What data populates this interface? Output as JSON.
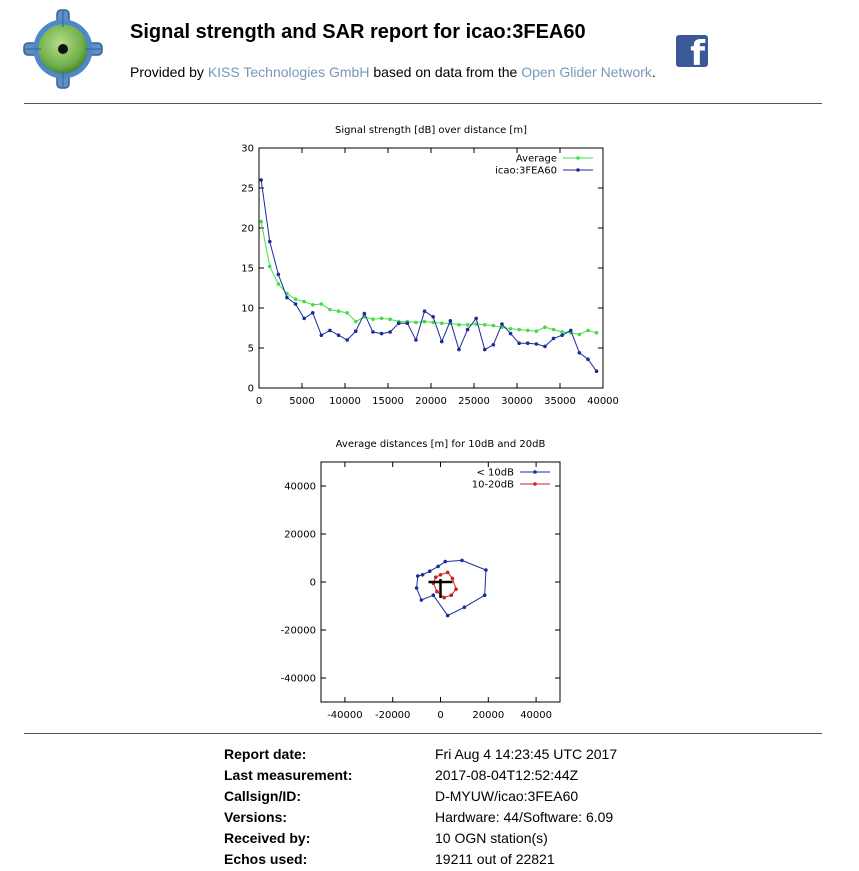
{
  "header": {
    "title": "Signal strength and SAR report for icao:3FEA60",
    "provided_prefix": "Provided by ",
    "provider_link": "KISS Technologies GmbH",
    "provided_middle": " based on data from the ",
    "network_link": "Open Glider Network",
    "provided_suffix": ".",
    "logo_icon": "crosshair-target-icon",
    "share_icon": "facebook-icon",
    "link_color": "#7a98b8"
  },
  "chart_data": [
    {
      "type": "line",
      "title": "Signal strength [dB] over distance [m]",
      "xlabel": "",
      "ylabel": "",
      "xlim": [
        0,
        40000
      ],
      "ylim": [
        0,
        30
      ],
      "xticks": [
        "0",
        "5000",
        "10000",
        "15000",
        "20000",
        "25000",
        "30000",
        "35000",
        "40000"
      ],
      "yticks": [
        "0",
        "5",
        "10",
        "15",
        "20",
        "25",
        "30"
      ],
      "legend_position": "top-right",
      "series": [
        {
          "name": "Average",
          "color": "#44dd44",
          "x": [
            250,
            1250,
            2250,
            3250,
            4250,
            5250,
            6250,
            7250,
            8250,
            9250,
            10250,
            11250,
            12250,
            13250,
            14250,
            15250,
            16250,
            17250,
            18250,
            19250,
            20250,
            21250,
            22250,
            23250,
            24250,
            25250,
            26250,
            27250,
            28250,
            29250,
            30250,
            31250,
            32250,
            33250,
            34250,
            35250,
            36250,
            37250,
            38250,
            39250
          ],
          "values": [
            20.8,
            15.2,
            13.0,
            11.8,
            11.1,
            10.8,
            10.4,
            10.5,
            9.8,
            9.6,
            9.4,
            8.3,
            8.9,
            8.6,
            8.7,
            8.6,
            8.3,
            8.3,
            8.2,
            8.3,
            8.2,
            8.1,
            8.1,
            7.9,
            7.9,
            8.0,
            7.9,
            7.8,
            7.6,
            7.4,
            7.3,
            7.2,
            7.1,
            7.6,
            7.3,
            7.0,
            6.9,
            6.7,
            7.2,
            6.9
          ]
        },
        {
          "name": "icao:3FEA60",
          "color": "#1a2d9c",
          "x": [
            250,
            1250,
            2250,
            3250,
            4250,
            5250,
            6250,
            7250,
            8250,
            9250,
            10250,
            11250,
            12250,
            13250,
            14250,
            15250,
            16250,
            17250,
            18250,
            19250,
            20250,
            21250,
            22250,
            23250,
            24250,
            25250,
            26250,
            27250,
            28250,
            29250,
            30250,
            31250,
            32250,
            33250,
            34250,
            35250,
            36250,
            37250,
            38250,
            39250
          ],
          "values": [
            26.0,
            18.3,
            14.2,
            11.3,
            10.5,
            8.7,
            9.4,
            6.6,
            7.2,
            6.6,
            6.0,
            7.1,
            9.3,
            7.0,
            6.8,
            7.0,
            8.1,
            8.1,
            6.0,
            9.6,
            8.9,
            5.8,
            8.4,
            4.8,
            7.3,
            8.7,
            4.8,
            5.4,
            8.0,
            6.8,
            5.6,
            5.6,
            5.5,
            5.2,
            6.2,
            6.6,
            7.2,
            4.4,
            3.6,
            2.1
          ]
        }
      ]
    },
    {
      "type": "scatter",
      "title": "Average distances [m] for 10dB and 20dB",
      "xlabel": "",
      "ylabel": "",
      "xlim": [
        -50000,
        50000
      ],
      "ylim": [
        -50000,
        50000
      ],
      "xticks": [
        "-40000",
        "-20000",
        "0",
        "20000",
        "40000"
      ],
      "yticks": [
        "40000",
        "20000",
        "0",
        "-20000",
        "-40000"
      ],
      "legend_position": "top-right",
      "marker": "cross-at-origin",
      "series": [
        {
          "name": "< 10dB",
          "color": "#1a2d9c",
          "x": [
            2000,
            9000,
            19000,
            18500,
            10000,
            3000,
            -3000,
            -8000,
            -10000,
            -9500,
            -7500,
            -4500,
            -1000
          ],
          "y": [
            8500,
            9000,
            5000,
            -5500,
            -10500,
            -14000,
            -5500,
            -7500,
            -2500,
            2500,
            3000,
            4500,
            6500
          ]
        },
        {
          "name": "10-20dB",
          "color": "#cc2222",
          "x": [
            3000,
            5000,
            6500,
            4500,
            1500,
            -1500,
            -3000,
            -2000,
            0
          ],
          "y": [
            4000,
            1500,
            -3000,
            -5500,
            -6500,
            -4000,
            -500,
            2000,
            3000
          ]
        }
      ]
    }
  ],
  "report": {
    "rows": [
      {
        "label": "Report date:",
        "value": "Fri Aug 4 14:23:45 UTC 2017"
      },
      {
        "label": "Last measurement:",
        "value": "2017-08-04T12:52:44Z"
      },
      {
        "label": "Callsign/ID:",
        "value": "D-MYUW/icao:3FEA60"
      },
      {
        "label": "Versions:",
        "value": "Hardware: 44/Software: 6.09"
      },
      {
        "label": "Received by:",
        "value": "10 OGN station(s)"
      },
      {
        "label": "Echos used:",
        "value": "19211 out of 22821"
      }
    ]
  }
}
